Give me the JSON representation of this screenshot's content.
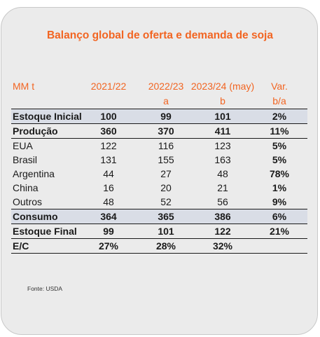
{
  "title": "Balanço global de oferta e demanda de soja",
  "source": "Fonte:  USDA",
  "chart_data": {
    "type": "table",
    "title": "Balanço global de oferta e demanda de soja",
    "header": {
      "unit": "MM t",
      "columns": [
        "2021/22",
        "2022/23",
        "2023/24 (may)",
        "Var."
      ],
      "subcolumns": [
        "",
        "a",
        "b",
        "b/a"
      ]
    },
    "rows": [
      {
        "label": "Estoque Inicial",
        "values": [
          "100",
          "99",
          "101",
          "2%"
        ],
        "style": "bold-shade"
      },
      {
        "label": "Produção",
        "values": [
          "360",
          "370",
          "411",
          "11%"
        ],
        "style": "bold"
      },
      {
        "label": "EUA",
        "values": [
          "122",
          "116",
          "123",
          "5%"
        ],
        "style": "normal"
      },
      {
        "label": "Brasil",
        "values": [
          "131",
          "155",
          "163",
          "5%"
        ],
        "style": "normal"
      },
      {
        "label": "Argentina",
        "values": [
          "44",
          "27",
          "48",
          "78%"
        ],
        "style": "normal"
      },
      {
        "label": "China",
        "values": [
          "16",
          "20",
          "21",
          "1%"
        ],
        "style": "normal"
      },
      {
        "label": "Outros",
        "values": [
          "48",
          "52",
          "56",
          "9%"
        ],
        "style": "normal"
      },
      {
        "label": "Consumo",
        "values": [
          "364",
          "365",
          "386",
          "6%"
        ],
        "style": "bold-shade"
      },
      {
        "label": "Estoque Final",
        "values": [
          "99",
          "101",
          "122",
          "21%"
        ],
        "style": "bold"
      },
      {
        "label": "E/C",
        "values": [
          "27%",
          "28%",
          "32%",
          ""
        ],
        "style": "bold"
      }
    ]
  }
}
